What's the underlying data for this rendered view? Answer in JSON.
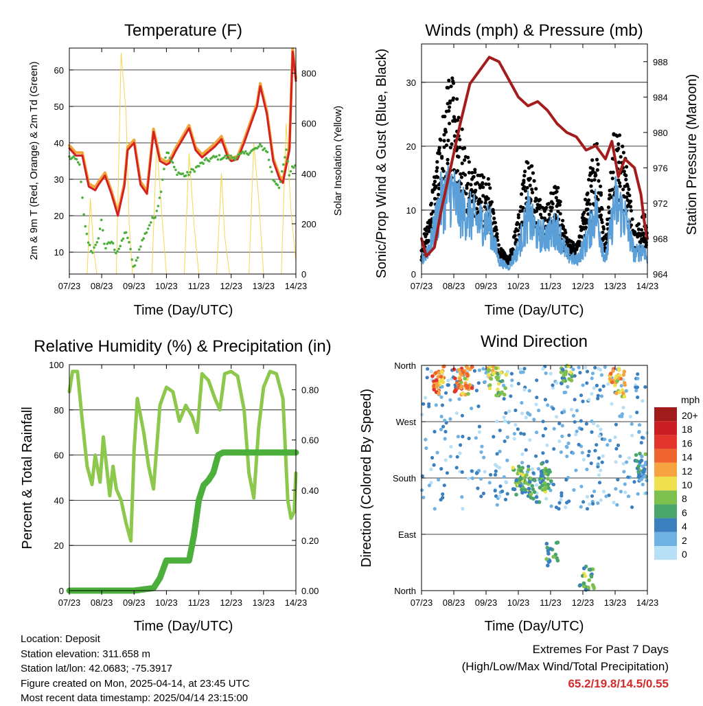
{
  "colors": {
    "temp2m": "#d42121",
    "temp9m": "#f2a33a",
    "dewpoint": "#4caf3c",
    "solar": "#f5d64a",
    "wind": "#5a9fd8",
    "gust": "#000000",
    "pressure": "#a51c1c",
    "rh": "#8cc84b",
    "precip": "#4caf3c"
  },
  "time_axis": {
    "label": "Time (Day/UTC)",
    "ticks": [
      "07/23",
      "08/23",
      "09/23",
      "10/23",
      "11/23",
      "12/23",
      "13/23",
      "14/23"
    ]
  },
  "chart_data": [
    {
      "id": "temperature",
      "type": "line",
      "title": "Temperature (F)",
      "ylabel": "2m & 9m T (Red, Orange) & 2m Td (Green)",
      "y2label": "Solar Insolation (Yellow)",
      "ylim": [
        4,
        66
      ],
      "yticks": [
        10,
        20,
        30,
        40,
        50,
        60
      ],
      "y2lim": [
        0,
        900
      ],
      "y2ticks": [
        0,
        200,
        400,
        600,
        800
      ],
      "grid": true,
      "series": [
        {
          "key": "temp2m",
          "color": "temp2m",
          "x": [
            0,
            0.2,
            0.4,
            0.6,
            0.8,
            0.9,
            1.1,
            1.3,
            1.5,
            1.7,
            1.8,
            2.0,
            2.2,
            2.4,
            2.6,
            2.8,
            3.0,
            3.1,
            3.3,
            3.5,
            3.7,
            3.9,
            4.1,
            4.3,
            4.5,
            4.7,
            4.9,
            5.0,
            5.2,
            5.4,
            5.6,
            5.8,
            5.9,
            6.1,
            6.3,
            6.5,
            6.6,
            6.8,
            6.9,
            7.0
          ],
          "y": [
            38.5,
            36.5,
            36.5,
            28,
            27,
            28.5,
            31,
            26,
            20,
            28,
            38,
            40,
            28.5,
            26,
            43,
            35,
            34,
            34.5,
            38,
            41,
            44,
            38,
            36,
            37.5,
            39,
            41,
            36,
            35,
            35.5,
            40,
            45,
            50,
            55.5,
            48,
            35,
            30,
            29,
            38,
            65,
            57
          ]
        },
        {
          "key": "dewpoint",
          "color": "dewpoint",
          "x": [
            0,
            0.3,
            0.45,
            0.55,
            0.7,
            0.85,
            1.0,
            1.1,
            1.3,
            1.45,
            1.6,
            1.75,
            1.9,
            2.0,
            2.2,
            2.35,
            2.5,
            2.65,
            2.8,
            3.0,
            3.3,
            3.6,
            3.9,
            4.2,
            4.5,
            4.8,
            5.1,
            5.4,
            5.7,
            5.9,
            6.1,
            6.3,
            6.5,
            6.7,
            6.8,
            6.9,
            7.0
          ],
          "y": [
            36,
            35,
            20,
            14,
            10,
            12,
            19,
            11,
            13,
            10,
            12,
            16,
            10,
            5,
            12,
            15,
            18,
            20,
            25,
            38,
            32,
            31,
            33,
            35,
            36,
            36,
            36,
            37,
            38,
            39,
            38,
            30,
            28,
            38,
            31,
            34,
            33
          ]
        },
        {
          "key": "solar",
          "color": "solar",
          "x": [
            0,
            0.55,
            0.65,
            0.75,
            0.85,
            1.45,
            1.6,
            1.75,
            1.85,
            1.95,
            2.55,
            2.7,
            2.85,
            3.0,
            3.1,
            3.55,
            3.7,
            3.85,
            4.0,
            4.55,
            4.7,
            4.8,
            4.95,
            5.55,
            5.7,
            5.85,
            6.0,
            6.55,
            6.7,
            6.85,
            7.0
          ],
          "y": [
            0,
            0,
            300,
            100,
            0,
            0,
            880,
            650,
            200,
            0,
            0,
            520,
            250,
            0,
            0,
            0,
            480,
            200,
            0,
            0,
            400,
            150,
            0,
            0,
            520,
            300,
            0,
            0,
            600,
            250,
            50
          ]
        }
      ]
    },
    {
      "id": "winds",
      "type": "scatter",
      "title": "Winds (mph) & Pressure (mb)",
      "ylabel": "Sonic/Prop Wind & Gust (Blue, Black)",
      "y2label": "Station Pressure (Maroon)",
      "ylim": [
        0,
        36
      ],
      "yticks": [
        0,
        10,
        20,
        30
      ],
      "y2lim": [
        964,
        990
      ],
      "y2ticks": [
        964,
        968,
        972,
        976,
        980,
        984,
        988
      ],
      "grid": true,
      "series": [
        {
          "key": "wind",
          "color": "wind",
          "x": [
            0,
            0.3,
            0.6,
            0.9,
            1.2,
            1.5,
            1.8,
            2.1,
            2.4,
            2.7,
            3.0,
            3.3,
            3.6,
            3.9,
            4.2,
            4.5,
            4.8,
            5.1,
            5.4,
            5.7,
            6.0,
            6.3,
            6.6,
            6.9,
            7.0
          ],
          "y": [
            2,
            5,
            11,
            13,
            10,
            9,
            8,
            8,
            2,
            1,
            4,
            9,
            6,
            6,
            7,
            3,
            2,
            5,
            10,
            2,
            11,
            9,
            3,
            4,
            2
          ]
        },
        {
          "key": "gust",
          "color": "gust",
          "x": [
            0,
            0.3,
            0.6,
            0.9,
            1.2,
            1.5,
            1.8,
            2.1,
            2.4,
            2.7,
            3.0,
            3.3,
            3.6,
            3.9,
            4.2,
            4.5,
            4.8,
            5.1,
            5.4,
            5.7,
            6.0,
            6.3,
            6.6,
            6.9,
            7.0
          ],
          "y": [
            4,
            10,
            21,
            28,
            22,
            15,
            14,
            13,
            4,
            2,
            8,
            18,
            11,
            10,
            13,
            5,
            4,
            11,
            20,
            4,
            22,
            17,
            6,
            9,
            5
          ]
        },
        {
          "key": "pressure",
          "color": "pressure",
          "x": [
            0,
            0.15,
            0.4,
            0.6,
            0.9,
            1.2,
            1.5,
            1.8,
            2.1,
            2.4,
            2.7,
            3.0,
            3.3,
            3.6,
            3.9,
            4.2,
            4.5,
            4.8,
            5.1,
            5.4,
            5.7,
            5.9,
            6.1,
            6.3,
            6.6,
            6.8,
            6.9,
            7.0
          ],
          "y": [
            968,
            966,
            967,
            971,
            976,
            981,
            985.5,
            987,
            988.5,
            988,
            986,
            984,
            983,
            983.5,
            982.5,
            981,
            980,
            979.5,
            978,
            978.5,
            977,
            979,
            975,
            977,
            976,
            973,
            970,
            968
          ]
        }
      ]
    },
    {
      "id": "humidity",
      "type": "line",
      "title": "Relative Humidity (%) & Precipitation (in)",
      "ylabel": "Percent & Total Rainfall",
      "ylim": [
        0,
        100
      ],
      "yticks": [
        0,
        20,
        40,
        60,
        80,
        100
      ],
      "y2lim": [
        0,
        0.9
      ],
      "y2ticks": [
        "0.00",
        "0.20",
        "0.40",
        "0.60",
        "0.80"
      ],
      "grid": true,
      "series": [
        {
          "key": "rh",
          "color": "rh",
          "x": [
            0,
            0.1,
            0.25,
            0.4,
            0.55,
            0.7,
            0.8,
            0.95,
            1.05,
            1.25,
            1.35,
            1.45,
            1.6,
            1.75,
            1.9,
            2.0,
            2.1,
            2.3,
            2.45,
            2.6,
            2.8,
            3.0,
            3.2,
            3.4,
            3.6,
            3.8,
            3.95,
            4.1,
            4.3,
            4.5,
            4.65,
            4.8,
            5.0,
            5.2,
            5.4,
            5.55,
            5.7,
            5.85,
            6.0,
            6.2,
            6.4,
            6.6,
            6.75,
            6.85,
            6.95,
            7.0
          ],
          "y": [
            88,
            97,
            97,
            75,
            55,
            47,
            60,
            48,
            68,
            42,
            55,
            45,
            40,
            30,
            22,
            62,
            85,
            70,
            55,
            45,
            82,
            90,
            88,
            75,
            82,
            77,
            70,
            96,
            93,
            85,
            80,
            96,
            97,
            95,
            80,
            52,
            41,
            72,
            90,
            97,
            96,
            85,
            40,
            32,
            35,
            52
          ]
        },
        {
          "key": "precip",
          "color": "precip",
          "x": [
            0,
            0.5,
            1.0,
            1.5,
            2.0,
            2.6,
            2.8,
            3.0,
            3.4,
            3.7,
            3.85,
            4.0,
            4.15,
            4.3,
            4.45,
            4.6,
            4.75,
            4.9,
            5.2,
            5.6,
            6.0,
            6.5,
            7.0
          ],
          "y": [
            0.0,
            0.0,
            0.0,
            0.0,
            0.0,
            0.01,
            0.05,
            0.12,
            0.12,
            0.12,
            0.22,
            0.36,
            0.42,
            0.44,
            0.47,
            0.54,
            0.55,
            0.55,
            0.55,
            0.55,
            0.55,
            0.55,
            0.55
          ]
        }
      ]
    },
    {
      "id": "direction",
      "type": "scatter",
      "title": "Wind Direction",
      "ylabel": "Direction (Colored By Speed)",
      "ylim": [
        0,
        360
      ],
      "yticks": [
        "North",
        "East",
        "South",
        "West",
        "North"
      ],
      "grid": true,
      "colorbar": {
        "title": "mph",
        "labels": [
          "20+",
          "18",
          "16",
          "14",
          "12",
          "10",
          "8",
          "6",
          "4",
          "2",
          "0"
        ],
        "colors": [
          "#a11c1c",
          "#c91f24",
          "#e3352b",
          "#ef6530",
          "#f6a442",
          "#eee04f",
          "#7ec04d",
          "#4aa56a",
          "#3b7fbe",
          "#6fb1e2",
          "#b7dff6"
        ]
      },
      "series": [
        {
          "key": "clusters",
          "description": "direction clusters",
          "x": [
            0.5,
            0.6,
            1.1,
            1.3,
            1.4,
            2.2,
            2.45,
            3.0,
            3.05,
            3.2,
            3.5,
            3.8,
            3.85,
            4.05,
            4.5,
            4.55,
            5.0,
            5.2,
            6.0,
            6.15,
            6.8,
            6.9
          ],
          "y": [
            335,
            345,
            338,
            330,
            340,
            343,
            330,
            180,
            170,
            175,
            160,
            178,
            190,
            60,
            350,
            355,
            10,
            20,
            345,
            330,
            200,
            190
          ],
          "speed": [
            14,
            12,
            15,
            11,
            13,
            10,
            8,
            7,
            6,
            8,
            5,
            7,
            6,
            5,
            6,
            8,
            7,
            6,
            12,
            10,
            5,
            4
          ]
        }
      ]
    }
  ],
  "info": {
    "location": "Location: Deposit",
    "elevation": "Station elevation: 311.658 m",
    "latlon": "Station lat/lon: 42.0683; -75.3917",
    "created": "Figure created on Mon, 2025-04-14, at 23:45 UTC",
    "recent": "Most recent data timestamp: 2025/04/14 23:15:00"
  },
  "extremes": {
    "line1": "Extremes For Past 7 Days",
    "line2": "(High/Low/Max Wind/Total Precipitation)",
    "values": "65.2/19.8/14.5/0.55"
  }
}
